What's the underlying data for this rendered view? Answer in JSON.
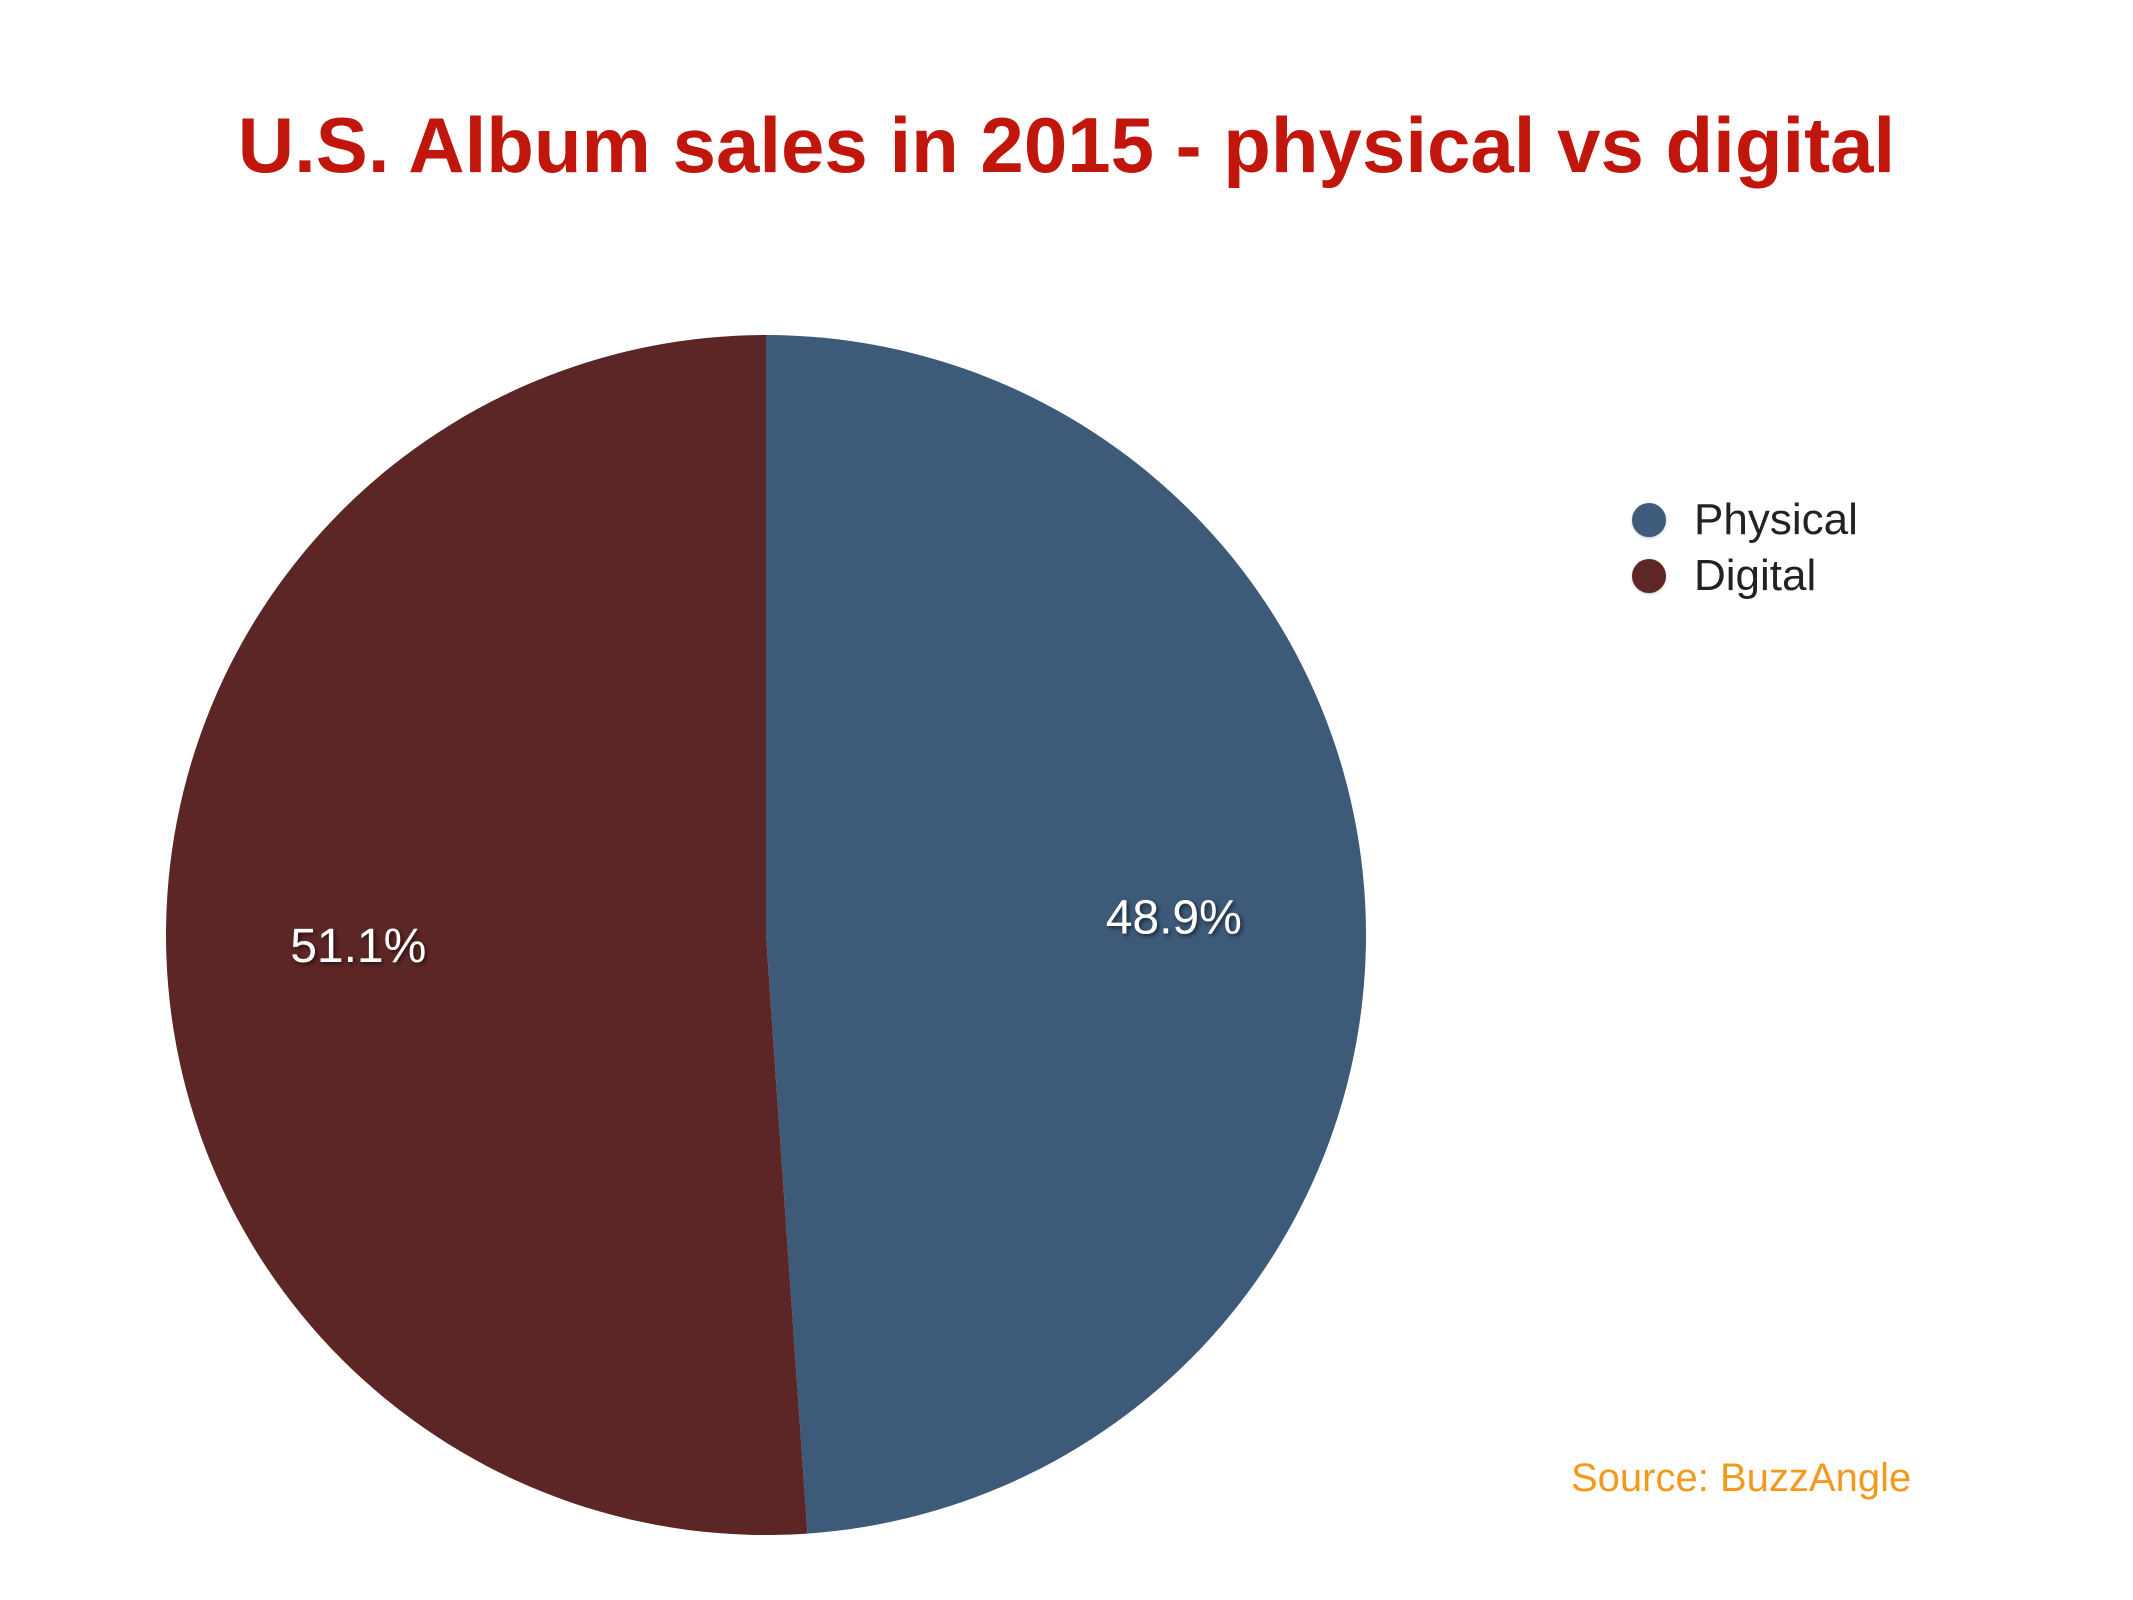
{
  "chart_data": {
    "type": "pie",
    "title": "U.S. Album sales in 2015 - physical vs digital",
    "slices": [
      {
        "label": "Physical",
        "value": 48.9,
        "display": "48.9%",
        "color": "#3e5b7b"
      },
      {
        "label": "Digital",
        "value": 51.1,
        "display": "51.1%",
        "color": "#5e2626"
      }
    ],
    "legend": {
      "placement": "right",
      "items": [
        "Physical",
        "Digital"
      ]
    }
  },
  "source": "Source: BuzzAngle",
  "colors": {
    "title": "#c0160b",
    "source": "#f39a1d",
    "slice_label": "#ffffff"
  }
}
